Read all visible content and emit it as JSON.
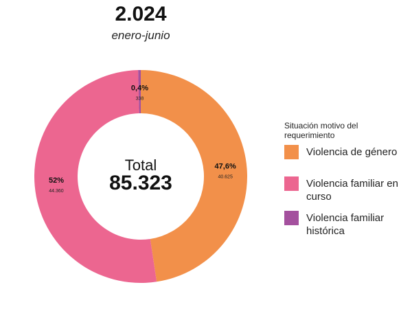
{
  "header": {
    "title": "2.024",
    "subtitle": "enero-junio"
  },
  "chart_data": {
    "type": "pie",
    "variant": "donut",
    "center_label": "Total",
    "center_value": "85.323",
    "legend_title": "Situación motivo del requerimiento",
    "legend_placement": "right",
    "slices": [
      {
        "name": "Violencia de género",
        "percent_label": "47,6%",
        "value": 40625,
        "value_label": "40.625",
        "color": "#F2904A"
      },
      {
        "name": "Violencia familiar en curso",
        "percent_label": "52%",
        "value": 44360,
        "value_label": "44.360",
        "color": "#EC6690"
      },
      {
        "name": "Violencia familiar histórica",
        "percent_label": "0,4%",
        "value": 338,
        "value_label": "338",
        "color": "#A4509E"
      }
    ]
  }
}
